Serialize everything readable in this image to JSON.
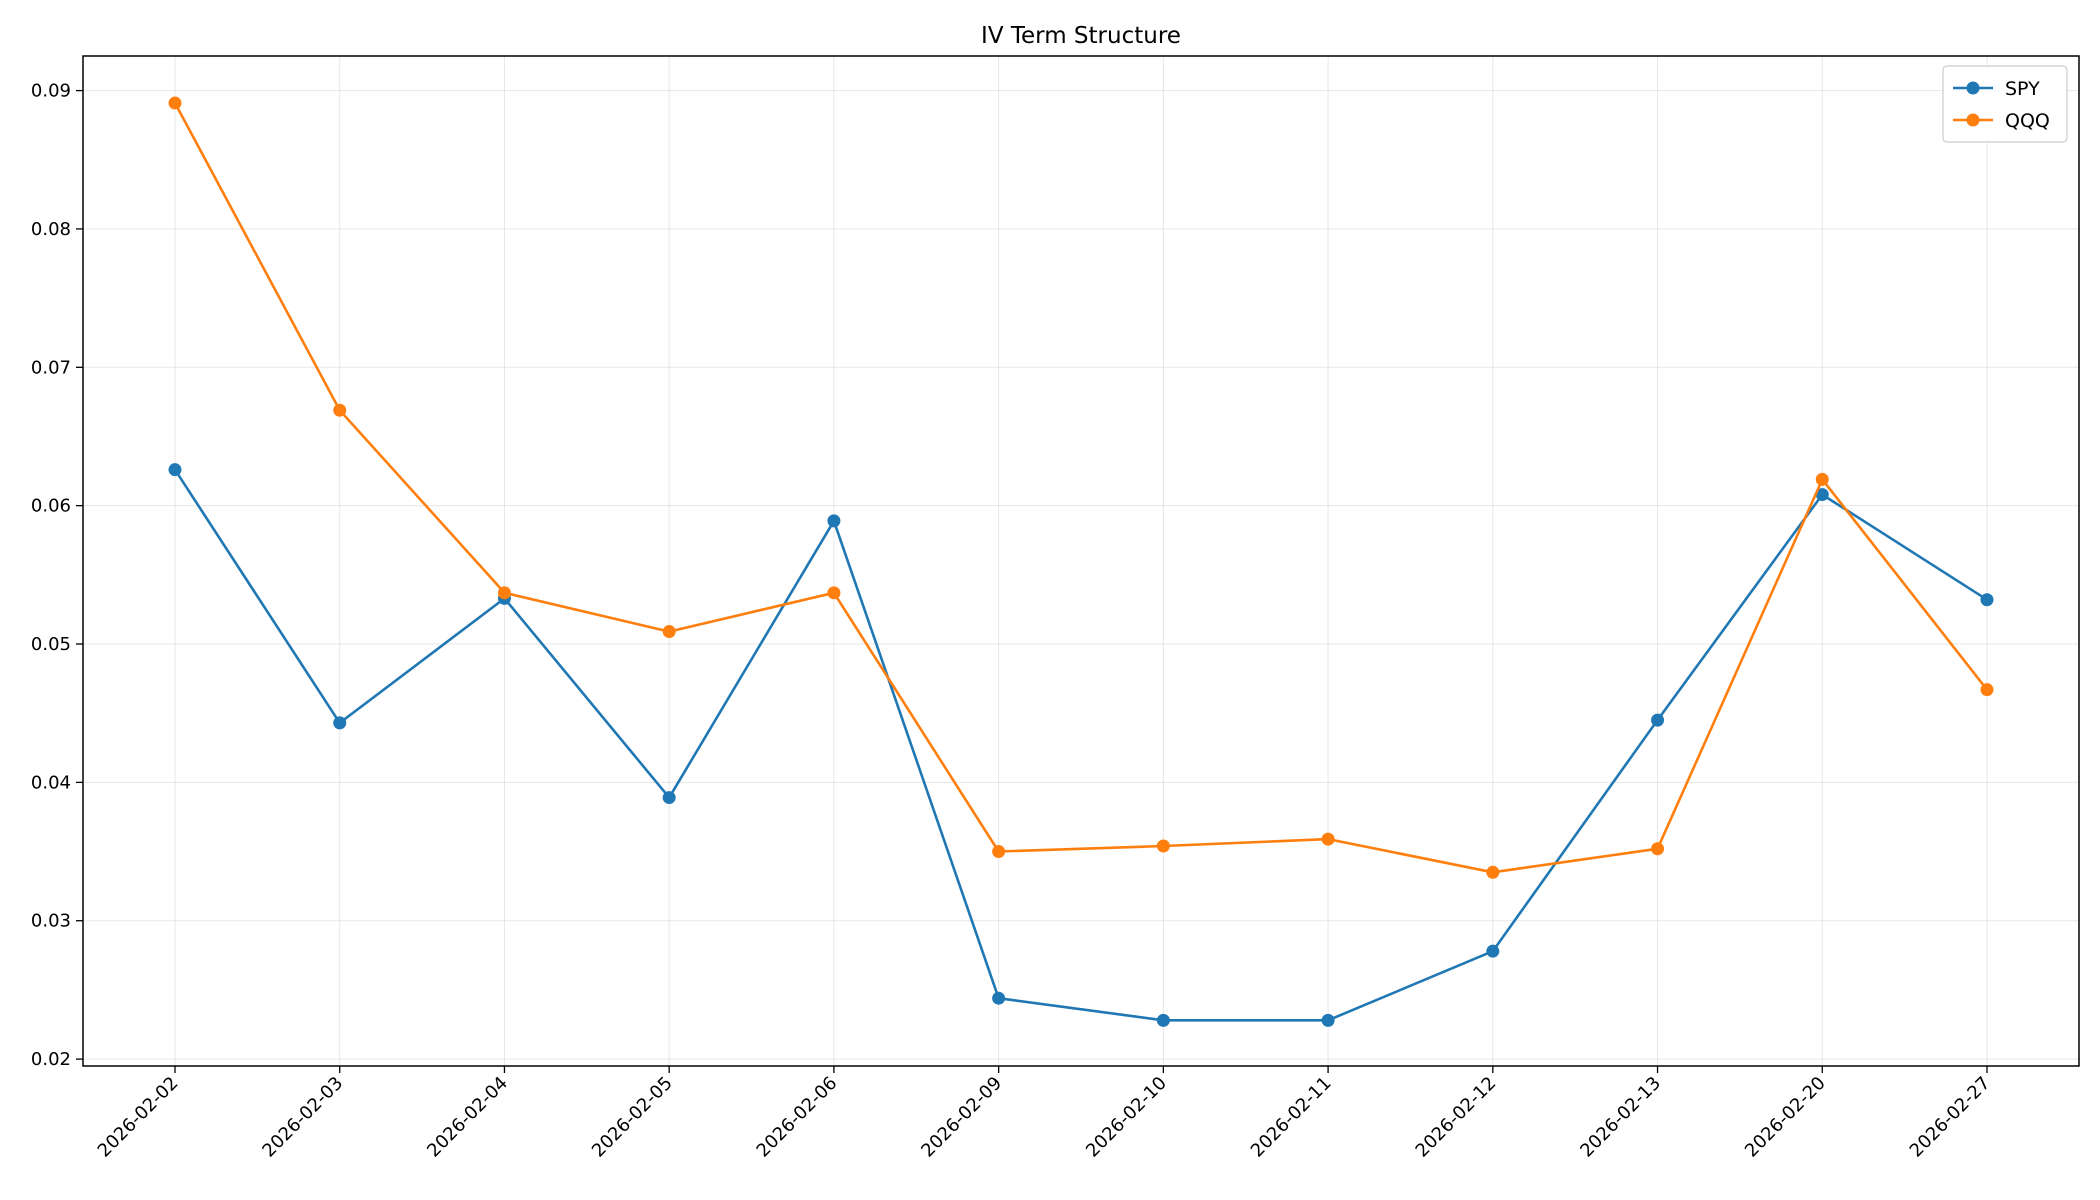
{
  "chart_data": {
    "type": "line",
    "title": "IV Term Structure",
    "xlabel": "",
    "ylabel": "",
    "categories": [
      "2026-02-02",
      "2026-02-03",
      "2026-02-04",
      "2026-02-05",
      "2026-02-06",
      "2026-02-09",
      "2026-02-10",
      "2026-02-11",
      "2026-02-12",
      "2026-02-13",
      "2026-02-20",
      "2026-02-27"
    ],
    "ylim": [
      0.0195,
      0.0925
    ],
    "yticks": [
      "0.02",
      "0.03",
      "0.04",
      "0.05",
      "0.06",
      "0.07",
      "0.08",
      "0.09"
    ],
    "grid": true,
    "legend_position": "top-right",
    "series": [
      {
        "name": "SPY",
        "color": "#1f77b4",
        "values": [
          0.0626,
          0.0443,
          0.0533,
          0.0389,
          0.0589,
          0.0244,
          0.0228,
          0.0228,
          0.0278,
          0.0445,
          0.0608,
          0.0532
        ]
      },
      {
        "name": "QQQ",
        "color": "#ff7f0e",
        "values": [
          0.0891,
          0.0669,
          0.0537,
          0.0509,
          0.0537,
          0.035,
          0.0354,
          0.0359,
          0.0335,
          0.0352,
          0.0619,
          0.0467
        ]
      }
    ]
  }
}
